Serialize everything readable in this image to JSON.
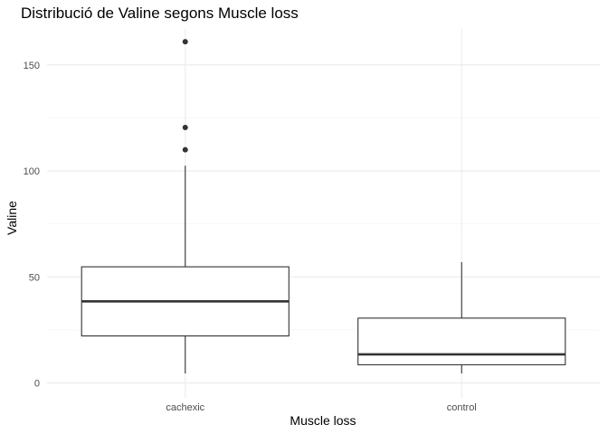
{
  "chart_data": {
    "type": "boxplot",
    "title": "Distribució de Valine segons Muscle loss",
    "xlabel": "Muscle loss",
    "ylabel": "Valine",
    "categories": [
      "cachexic",
      "control"
    ],
    "y_ticks": [
      0,
      50,
      100,
      150
    ],
    "ylim": [
      -7,
      167
    ],
    "grid": true,
    "boxes": [
      {
        "category": "cachexic",
        "whisker_low": 4.5,
        "q1": 22.2,
        "median": 38.5,
        "q3": 54.8,
        "whisker_high": 102.5,
        "outliers": [
          110.0,
          120.5,
          161.0
        ]
      },
      {
        "category": "control",
        "whisker_low": 4.5,
        "q1": 8.6,
        "median": 13.5,
        "q3": 30.6,
        "whisker_high": 57.0,
        "outliers": []
      }
    ]
  }
}
